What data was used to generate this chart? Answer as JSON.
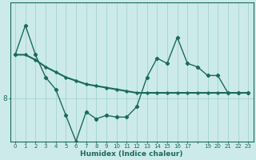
{
  "xlabel": "Humidex (Indice chaleur)",
  "background_color": "#cceaea",
  "line_color": "#1a6b5a",
  "grid_color": "#9ecece",
  "x_values": [
    0,
    1,
    2,
    3,
    4,
    5,
    6,
    7,
    8,
    9,
    10,
    11,
    12,
    13,
    14,
    15,
    16,
    17,
    18,
    19,
    20,
    21,
    22,
    23
  ],
  "series1": [
    10.5,
    12.2,
    10.5,
    9.2,
    8.5,
    7.0,
    5.5,
    7.2,
    6.8,
    7.0,
    6.9,
    6.9,
    7.5,
    9.2,
    10.3,
    10.0,
    11.5,
    10.0,
    9.8,
    9.3,
    9.3,
    8.3,
    8.3,
    8.3
  ],
  "series2": [
    10.5,
    10.5,
    10.2,
    9.8,
    9.5,
    9.2,
    9.0,
    8.8,
    8.7,
    8.6,
    8.5,
    8.4,
    8.3,
    8.3,
    8.3,
    8.3,
    8.3,
    8.3,
    8.3,
    8.3,
    8.3,
    8.3,
    8.3,
    8.3
  ],
  "ytick_label": "8",
  "ytick_value": 8.0,
  "ylim": [
    5.5,
    13.5
  ],
  "xlim": [
    -0.5,
    23.5
  ],
  "xtick_labels": [
    "0",
    "1",
    "2",
    "3",
    "4",
    "5",
    "6",
    "7",
    "8",
    "9",
    "10",
    "11",
    "12",
    "13",
    "14",
    "15",
    "16",
    "17",
    "",
    "19",
    "20",
    "21",
    "22",
    "23"
  ]
}
